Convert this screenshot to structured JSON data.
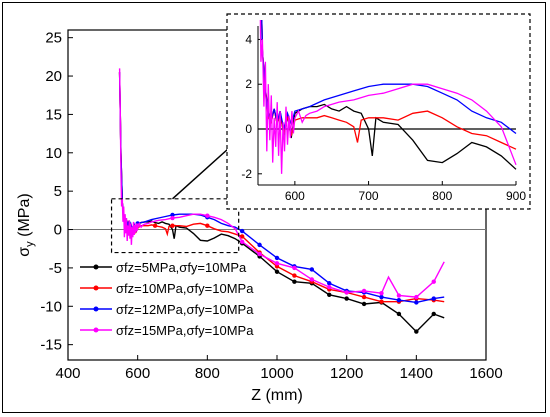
{
  "chart_data": {
    "type": "line",
    "title": "",
    "xlabel": "Z (mm)",
    "ylabel": "σ_y (MPa)",
    "xlim": [
      400,
      1600
    ],
    "ylim": [
      -17,
      26
    ],
    "xticks": [
      400,
      600,
      800,
      1000,
      1200,
      1400,
      1600
    ],
    "yticks": [
      -15,
      -10,
      -5,
      0,
      5,
      10,
      15,
      20,
      25
    ],
    "grid": false,
    "legend_position": "bottom-left",
    "reference_line": 0,
    "series": [
      {
        "name": "σfz=5MPa,σfy=10MPa",
        "color": "#000000",
        "x": [
          548,
          552,
          556,
          560,
          564,
          568,
          572,
          576,
          580,
          585,
          590,
          595,
          600,
          610,
          620,
          630,
          640,
          650,
          660,
          670,
          680,
          690,
          700,
          705,
          710,
          720,
          740,
          760,
          780,
          800,
          820,
          840,
          860,
          880,
          900,
          950,
          1000,
          1050,
          1100,
          1150,
          1200,
          1250,
          1300,
          1350,
          1400,
          1450,
          1480
        ],
        "y": [
          20.5,
          10,
          3.5,
          1.8,
          0.8,
          0.4,
          0.9,
          0.2,
          0.8,
          -0.3,
          0.6,
          -0.4,
          0.7,
          0.9,
          1,
          1,
          1.1,
          0.9,
          0.8,
          1,
          0.8,
          0.7,
          0,
          -1.2,
          0.5,
          0.3,
          0.2,
          -0.5,
          -1.4,
          -1.5,
          -1.1,
          -0.6,
          -0.8,
          -1.2,
          -1.8,
          -3.5,
          -5.5,
          -6.8,
          -7,
          -8.5,
          -9,
          -9.7,
          -9.5,
          -11,
          -13.3,
          -11,
          -11.5
        ],
        "markers_from": 900
      },
      {
        "name": "σfz=10MPa,σfy=10MPa",
        "color": "#ff0000",
        "x": [
          548,
          552,
          556,
          560,
          564,
          568,
          572,
          576,
          580,
          585,
          590,
          595,
          600,
          610,
          620,
          630,
          640,
          650,
          660,
          670,
          680,
          685,
          690,
          700,
          720,
          740,
          760,
          780,
          800,
          820,
          840,
          860,
          880,
          900,
          950,
          1000,
          1050,
          1100,
          1150,
          1200,
          1250,
          1300,
          1350,
          1400,
          1450,
          1480
        ],
        "y": [
          20.5,
          10,
          3.5,
          1.6,
          0.5,
          0.3,
          0.9,
          0.2,
          0.7,
          -0.2,
          0.6,
          -0.3,
          0.4,
          0.5,
          0.5,
          0.5,
          0.6,
          0.5,
          0.4,
          0.3,
          0.1,
          -0.6,
          0.4,
          0.5,
          0.5,
          0.4,
          0.7,
          0.8,
          0.5,
          0.1,
          -0.2,
          -0.3,
          -0.6,
          -0.9,
          -3,
          -4.8,
          -6,
          -6.8,
          -7.8,
          -8.2,
          -8.8,
          -9.4,
          -9.4,
          -9,
          -9.2,
          -9.4
        ],
        "markers_from": 600
      },
      {
        "name": "σfz=12MPa,σfy=10MPa",
        "color": "#0000ff",
        "x": [
          548,
          552,
          556,
          560,
          564,
          568,
          572,
          576,
          580,
          585,
          590,
          595,
          600,
          610,
          620,
          640,
          660,
          680,
          700,
          720,
          740,
          760,
          780,
          800,
          820,
          840,
          860,
          880,
          900,
          950,
          1000,
          1050,
          1100,
          1150,
          1200,
          1250,
          1300,
          1350,
          1400,
          1450,
          1480
        ],
        "y": [
          20.5,
          10,
          3.5,
          1.7,
          0.6,
          0.4,
          0.9,
          0.3,
          0.8,
          0,
          0.7,
          0.2,
          0.8,
          0.9,
          1,
          1.3,
          1.5,
          1.7,
          1.9,
          2,
          2,
          2,
          1.9,
          1.6,
          1.3,
          0.8,
          0.5,
          0.3,
          -0.2,
          -2,
          -3.7,
          -4.8,
          -5.2,
          -7,
          -8,
          -8.2,
          -8.8,
          -9.2,
          -9.5,
          -9,
          -8.8
        ],
        "markers_from": 600
      },
      {
        "name": "σfz=15MPa,σfy=10MPa",
        "color": "#ff00ff",
        "x": [
          548,
          550,
          552,
          554,
          556,
          558,
          560,
          562,
          564,
          566,
          568,
          570,
          572,
          574,
          576,
          578,
          580,
          582,
          584,
          586,
          588,
          590,
          592,
          594,
          596,
          598,
          600,
          605,
          610,
          615,
          620,
          630,
          640,
          660,
          680,
          700,
          720,
          740,
          760,
          780,
          800,
          820,
          840,
          860,
          880,
          900,
          950,
          1000,
          1050,
          1100,
          1150,
          1200,
          1250,
          1300,
          1320,
          1350,
          1400,
          1450,
          1480
        ],
        "y": [
          21,
          15,
          8,
          3,
          4,
          1,
          3,
          -1,
          2,
          -0.5,
          1.5,
          -1.5,
          0.5,
          -0.8,
          1.2,
          -1.2,
          0.8,
          -2,
          0.3,
          -1,
          1,
          -0.7,
          0.6,
          -0.4,
          0.8,
          -0.2,
          0.5,
          0.8,
          0.3,
          0.6,
          0.7,
          0.8,
          1,
          1.2,
          1.3,
          1.5,
          1.6,
          1.8,
          2,
          2,
          1.8,
          1.6,
          1.3,
          0.8,
          0.1,
          -1.6,
          -3.2,
          -4.4,
          -5,
          -6.5,
          -7.5,
          -8.2,
          -8,
          -8.3,
          -6.2,
          -8.6,
          -8.8,
          -6.8,
          -4.2
        ],
        "markers_from": 560
      }
    ],
    "inset": {
      "xlim": [
        550,
        900
      ],
      "ylim": [
        -2.5,
        4.6
      ],
      "xticks": [
        600,
        700,
        800,
        900
      ],
      "yticks": [
        -2,
        0,
        2,
        4
      ],
      "reference_line": 0,
      "zoom_region": {
        "xlim": [
          525,
          890
        ],
        "ylim": [
          -3,
          4
        ]
      }
    }
  }
}
